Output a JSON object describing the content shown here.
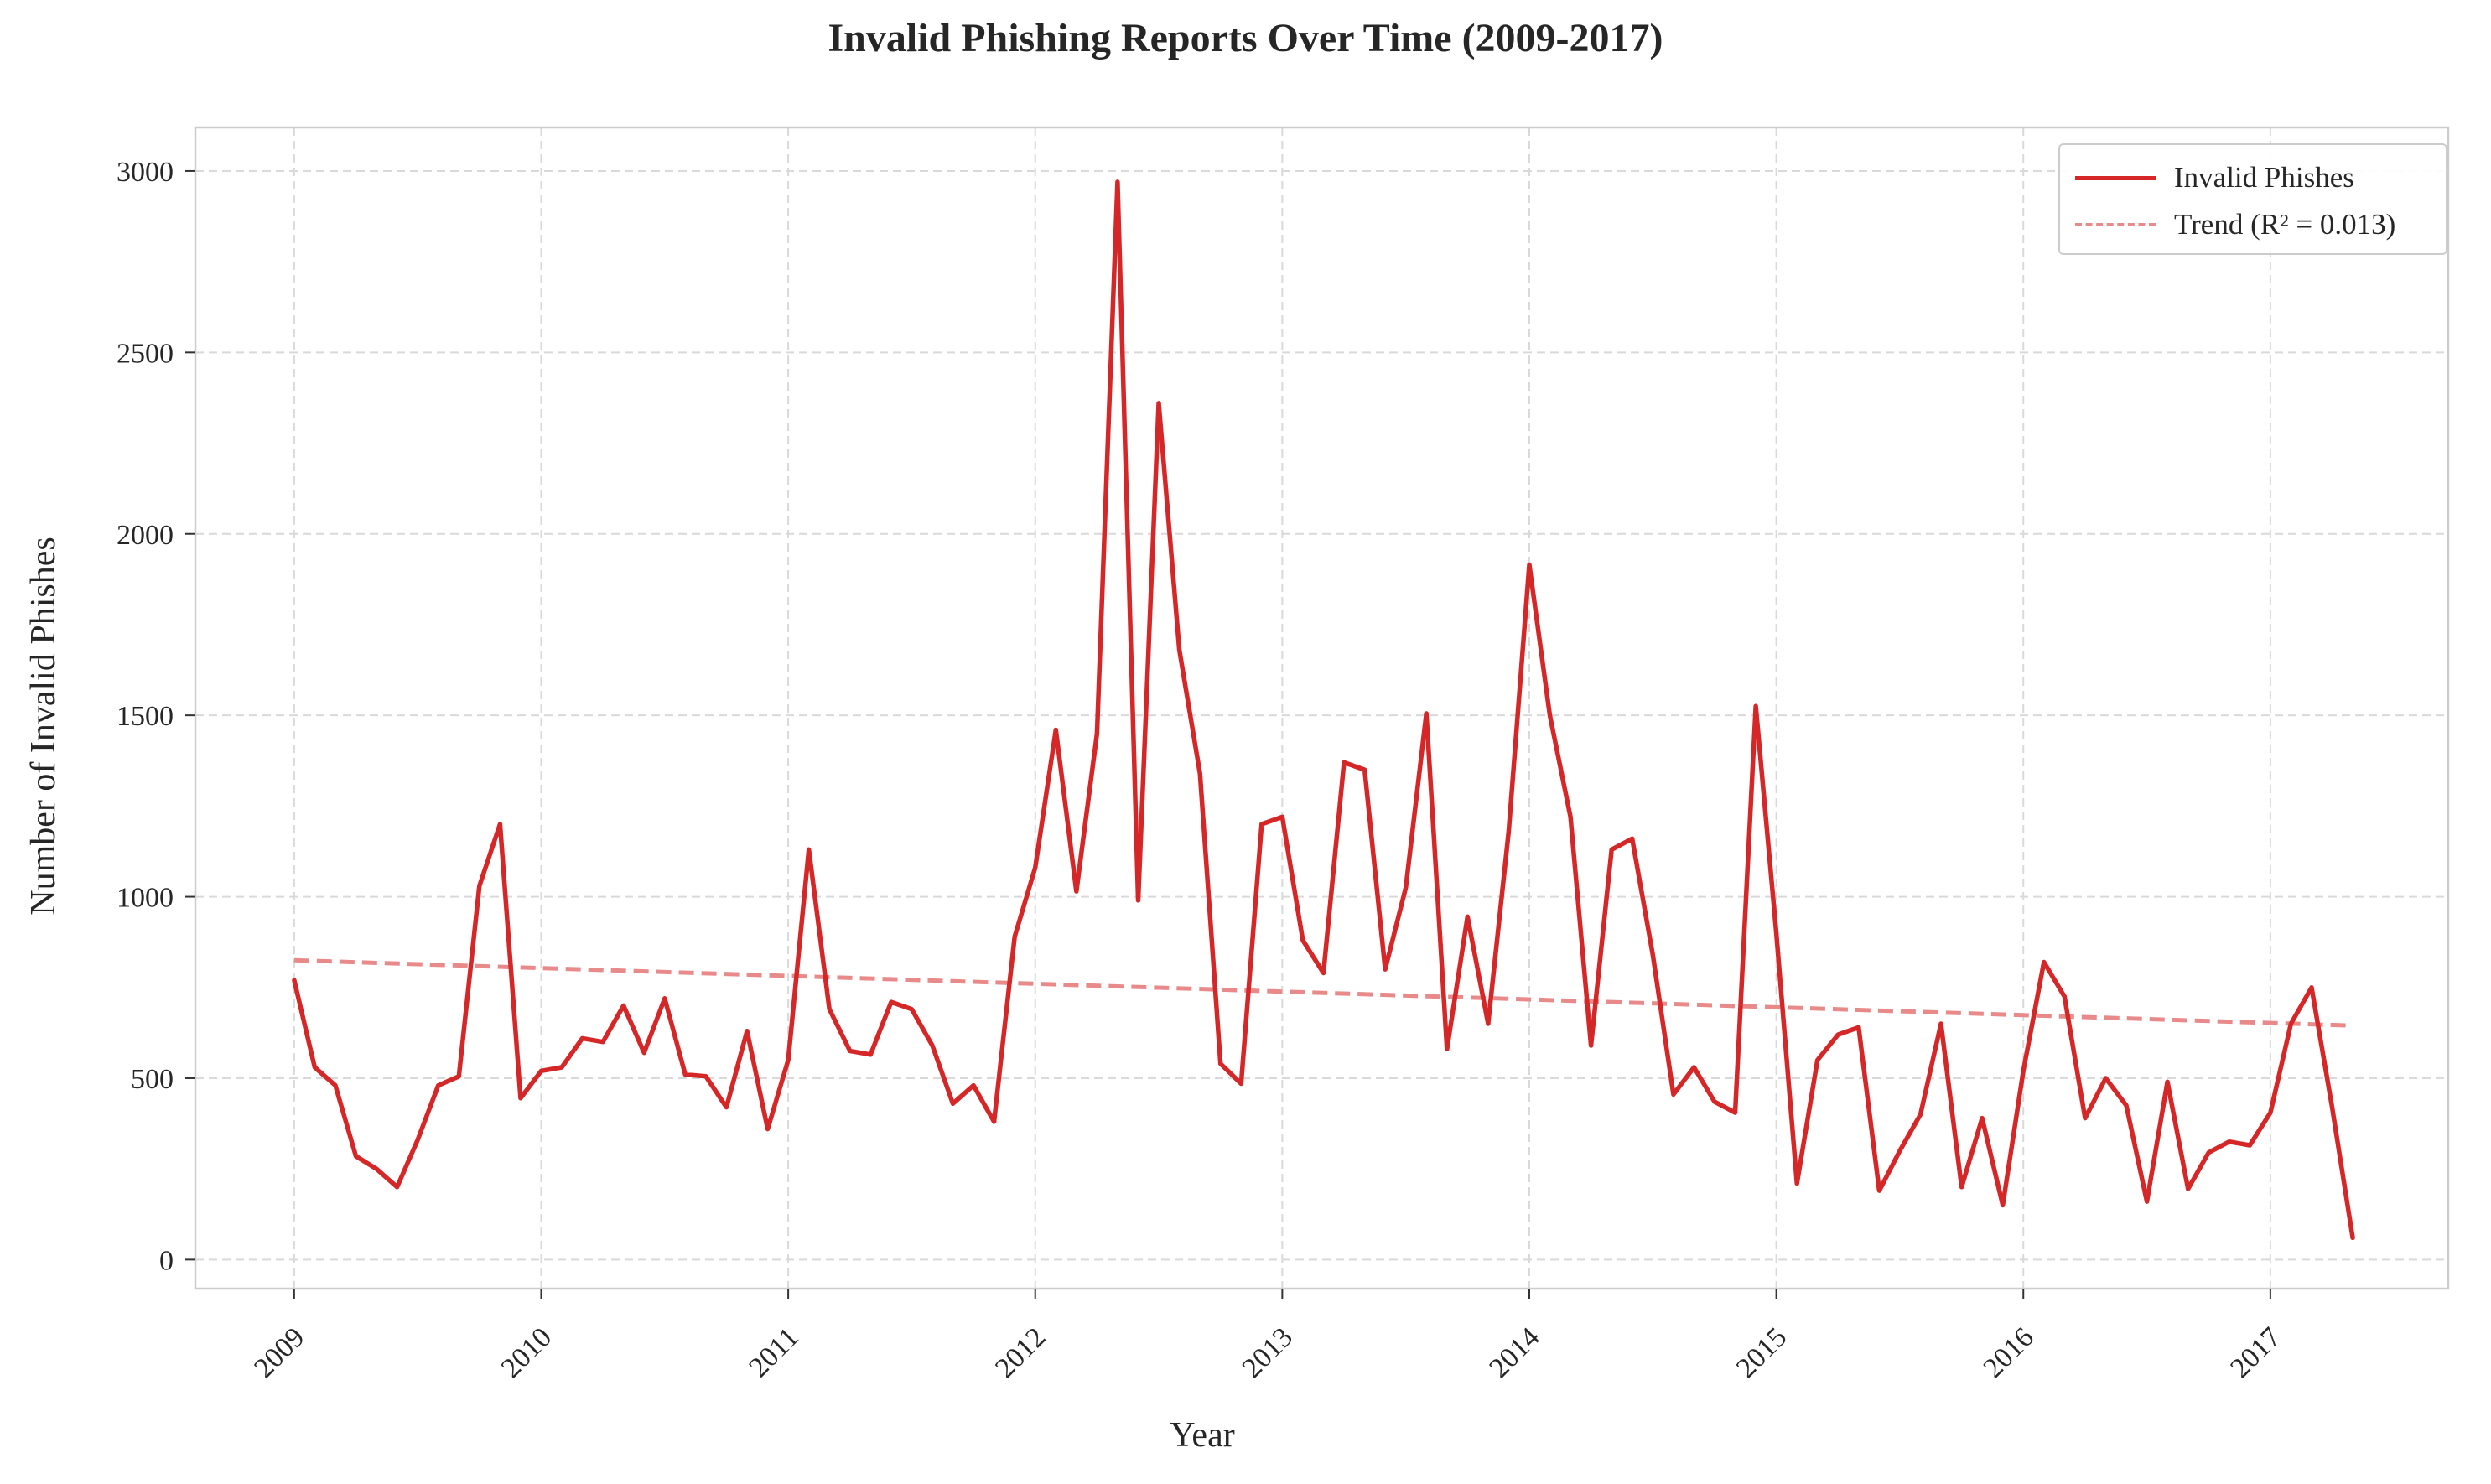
{
  "title": "Invalid Phishing Reports Over Time (2009-2017)",
  "chart_data": {
    "type": "line",
    "title": "Invalid Phishing Reports Over Time (2009-2017)",
    "xlabel": "Year",
    "ylabel": "Number of Invalid Phishes",
    "x_start": "2009-01",
    "x_frequency": "monthly",
    "xlim": [
      2008.6,
      2017.72
    ],
    "ylim": [
      -80,
      3120
    ],
    "x_ticks": [
      2009,
      2010,
      2011,
      2012,
      2013,
      2014,
      2015,
      2016,
      2017
    ],
    "x_tick_labels": [
      "2009",
      "2010",
      "2011",
      "2012",
      "2013",
      "2014",
      "2015",
      "2016",
      "2017"
    ],
    "y_ticks": [
      0,
      500,
      1000,
      1500,
      2000,
      2500,
      3000
    ],
    "y_tick_labels": [
      "0",
      "500",
      "1000",
      "1500",
      "2000",
      "2500",
      "3000"
    ],
    "grid": true,
    "legend_position": "top-right",
    "series": [
      {
        "name": "Invalid Phishes",
        "color": "#d62728",
        "style": "solid",
        "values": [
          770,
          530,
          480,
          285,
          250,
          200,
          330,
          480,
          505,
          1030,
          1200,
          445,
          520,
          530,
          610,
          600,
          700,
          570,
          720,
          510,
          505,
          420,
          630,
          360,
          550,
          1130,
          690,
          575,
          565,
          710,
          690,
          590,
          430,
          480,
          380,
          890,
          1080,
          1460,
          1015,
          1450,
          2970,
          990,
          2360,
          1680,
          1340,
          540,
          485,
          1200,
          1220,
          880,
          790,
          1370,
          1350,
          800,
          1025,
          1505,
          580,
          945,
          650,
          1180,
          1915,
          1500,
          1220,
          590,
          1130,
          1160,
          840,
          455,
          530,
          435,
          405,
          1525,
          900,
          210,
          550,
          620,
          640,
          190,
          300,
          400,
          650,
          200,
          390,
          150,
          520,
          820,
          725,
          390,
          500,
          425,
          160,
          490,
          195,
          295,
          325,
          315,
          405,
          650,
          750,
          420,
          60
        ]
      },
      {
        "name": "Trend (R² = 0.013)",
        "color": "#e8898a",
        "style": "dashed",
        "x": [
          "2009-01",
          "2017-05"
        ],
        "values": [
          825,
          645
        ]
      }
    ]
  }
}
